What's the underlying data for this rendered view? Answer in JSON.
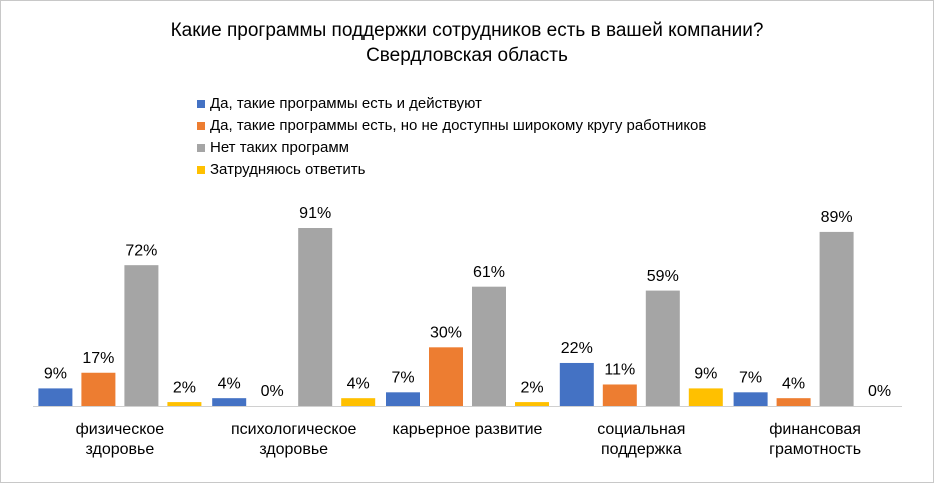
{
  "chart_data": {
    "type": "bar",
    "title": "Какие программы поддержки сотрудников есть в вашей компании?",
    "subtitle": "Свердловская область",
    "categories": [
      [
        "физическое",
        "здоровье"
      ],
      [
        "психологическое",
        "здоровье"
      ],
      [
        "карьерное развитие"
      ],
      [
        "социальная",
        "поддержка"
      ],
      [
        "финансовая",
        "грамотность"
      ]
    ],
    "series": [
      {
        "name": "Да, такие программы есть и действуют",
        "color": "#4472c4",
        "values": [
          9,
          4,
          7,
          22,
          7
        ],
        "value_labels": [
          "9%",
          "4%",
          "7%",
          "22%",
          "7%"
        ]
      },
      {
        "name": "Да, такие программы есть, но не доступны широкому кругу работников",
        "color": "#ed7d31",
        "values": [
          17,
          0,
          30,
          11,
          4
        ],
        "value_labels": [
          "17%",
          "0%",
          "30%",
          "11%",
          "4%"
        ]
      },
      {
        "name": "Нет таких программ",
        "color": "#a5a5a5",
        "values": [
          72,
          91,
          61,
          59,
          89
        ],
        "value_labels": [
          "72%",
          "91%",
          "61%",
          "59%",
          "89%"
        ]
      },
      {
        "name": "Затрудняюсь ответить",
        "color": "#ffc000",
        "values": [
          2,
          4,
          2,
          9,
          0
        ],
        "value_labels": [
          "2%",
          "4%",
          "2%",
          "9%",
          "0%"
        ]
      }
    ],
    "legend": "top-left"
  }
}
